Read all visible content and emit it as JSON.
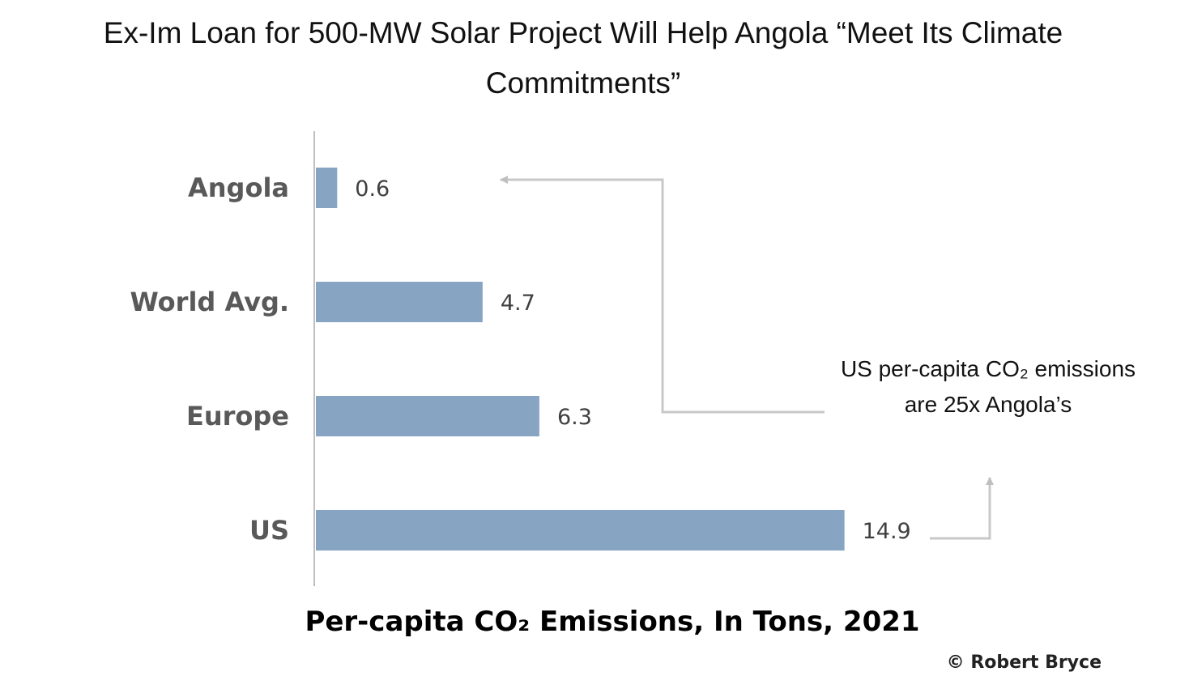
{
  "chart_data": {
    "type": "bar",
    "orientation": "horizontal",
    "title": "Ex-Im Loan for 500-MW Solar Project Will Help Angola “Meet Its Climate Commitments”",
    "xlabel": "Per-capita CO₂ Emissions, In Tons, 2021",
    "ylabel": "",
    "categories": [
      "Angola",
      "World Avg.",
      "Europe",
      "US"
    ],
    "values": [
      0.6,
      4.7,
      6.3,
      14.9
    ],
    "value_labels": [
      "0.6",
      "4.7",
      "6.3",
      "14.9"
    ],
    "xlim": [
      0,
      15
    ],
    "grid": false,
    "legend": "none",
    "bar_color": "#87a5c3",
    "annotation": {
      "line1": "US per-capita CO₂ emissions",
      "line2": "are 25x Angola’s"
    },
    "credit": "© Robert Bryce"
  }
}
